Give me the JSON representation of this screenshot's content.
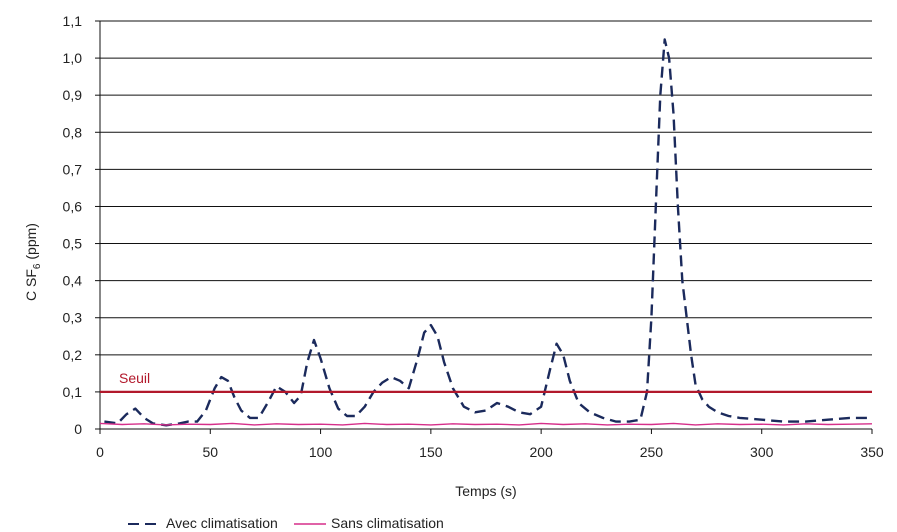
{
  "chart_data": {
    "type": "line",
    "title": "",
    "xlabel": "Temps (s)",
    "ylabel": "C SF6 (ppm)",
    "ylabel_main": "C SF",
    "ylabel_sub": "6",
    "ylabel_unit": " (ppm)",
    "xlim": [
      0,
      350
    ],
    "ylim": [
      0,
      1.1
    ],
    "x_ticks": [
      0,
      50,
      100,
      150,
      200,
      250,
      300,
      350
    ],
    "y_ticks": [
      0,
      0.1,
      0.2,
      0.3,
      0.4,
      0.5,
      0.6,
      0.7,
      0.8,
      0.9,
      1.0,
      1.1
    ],
    "y_tick_labels": [
      "0",
      "0,1",
      "0,2",
      "0,3",
      "0,4",
      "0,5",
      "0,6",
      "0,7",
      "0,8",
      "0,9",
      "1,0",
      "1,1"
    ],
    "grid": "horizontal",
    "legend_position": "bottom-left",
    "threshold": {
      "label": "Seuil",
      "value": 0.1,
      "color": "#b2182b"
    },
    "series": [
      {
        "name": "Avec climatisation",
        "color": "#1b2a5c",
        "dash": true,
        "x": [
          2,
          8,
          12,
          16,
          20,
          24,
          30,
          36,
          40,
          44,
          48,
          52,
          55,
          58,
          61,
          64,
          68,
          72,
          76,
          80,
          84,
          88,
          91,
          94,
          97,
          100,
          104,
          108,
          112,
          116,
          120,
          124,
          128,
          132,
          136,
          140,
          144,
          147,
          150,
          153,
          156,
          160,
          165,
          170,
          175,
          180,
          185,
          190,
          195,
          200,
          204,
          207,
          210,
          213,
          217,
          222,
          228,
          234,
          240,
          245,
          248,
          250,
          252,
          254,
          256,
          258,
          260,
          262,
          264,
          266,
          268,
          270,
          273,
          276,
          280,
          285,
          290,
          300,
          310,
          320,
          330,
          340,
          345,
          350
        ],
        "values": [
          0.02,
          0.015,
          0.04,
          0.055,
          0.03,
          0.015,
          0.01,
          0.015,
          0.02,
          0.02,
          0.05,
          0.11,
          0.14,
          0.13,
          0.085,
          0.05,
          0.03,
          0.03,
          0.07,
          0.115,
          0.1,
          0.07,
          0.09,
          0.18,
          0.24,
          0.19,
          0.11,
          0.055,
          0.035,
          0.035,
          0.06,
          0.1,
          0.125,
          0.14,
          0.13,
          0.11,
          0.19,
          0.26,
          0.28,
          0.25,
          0.18,
          0.11,
          0.06,
          0.045,
          0.05,
          0.07,
          0.06,
          0.045,
          0.04,
          0.06,
          0.16,
          0.23,
          0.2,
          0.13,
          0.07,
          0.045,
          0.03,
          0.02,
          0.02,
          0.025,
          0.1,
          0.3,
          0.6,
          0.9,
          1.05,
          1.0,
          0.85,
          0.6,
          0.4,
          0.3,
          0.2,
          0.12,
          0.08,
          0.06,
          0.045,
          0.035,
          0.03,
          0.025,
          0.02,
          0.02,
          0.025,
          0.03,
          0.03,
          0.03
        ]
      },
      {
        "name": "Sans climatisation",
        "color": "#d62f8a",
        "dash": false,
        "x": [
          0,
          10,
          20,
          30,
          40,
          50,
          60,
          70,
          80,
          90,
          100,
          110,
          120,
          130,
          140,
          150,
          160,
          170,
          180,
          190,
          200,
          210,
          220,
          230,
          240,
          250,
          260,
          270,
          280,
          290,
          300,
          310,
          320,
          330,
          340,
          350
        ],
        "values": [
          0.015,
          0.012,
          0.014,
          0.011,
          0.013,
          0.012,
          0.015,
          0.011,
          0.014,
          0.012,
          0.013,
          0.011,
          0.015,
          0.012,
          0.013,
          0.011,
          0.014,
          0.012,
          0.013,
          0.011,
          0.015,
          0.012,
          0.014,
          0.011,
          0.013,
          0.012,
          0.015,
          0.011,
          0.014,
          0.012,
          0.013,
          0.011,
          0.014,
          0.012,
          0.013,
          0.014
        ]
      }
    ]
  }
}
